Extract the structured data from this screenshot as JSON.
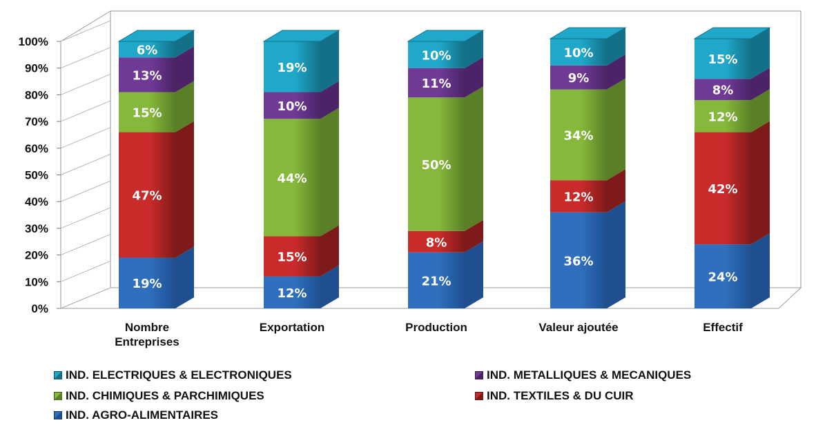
{
  "chart_data": {
    "type": "bar",
    "stacked": true,
    "percent_stacked": true,
    "three_d": true,
    "categories": [
      "Nombre Entreprises",
      "Exportation",
      "Production",
      "Valeur ajoutée",
      "Effectif"
    ],
    "category_lines": [
      [
        "Nombre",
        "Entreprises"
      ],
      [
        "Exportation"
      ],
      [
        "Production"
      ],
      [
        "Valeur ajoutée"
      ],
      [
        "Effectif"
      ]
    ],
    "series": [
      {
        "name": "IND. AGRO-ALIMENTAIRES",
        "values": [
          19,
          12,
          21,
          36,
          24
        ],
        "labels": [
          "19%",
          "12%",
          "21%",
          "36%",
          "24%"
        ],
        "color": "#2f6fbd",
        "side": "#1f4f8f"
      },
      {
        "name": "IND. TEXTILES & DU CUIR",
        "values": [
          47,
          15,
          8,
          12,
          42
        ],
        "labels": [
          "47%",
          "15%",
          "8%",
          "12%",
          "42%"
        ],
        "color": "#c92b2b",
        "side": "#7f1a1a"
      },
      {
        "name": "IND. CHIMIQUES & PARCHIMIQUES",
        "values": [
          15,
          44,
          50,
          34,
          12
        ],
        "labels": [
          "15%",
          "44%",
          "50%",
          "34%",
          "12%"
        ],
        "color": "#86b83b",
        "side": "#5a7f26"
      },
      {
        "name": "IND. METALLIQUES & MECANIQUES",
        "values": [
          13,
          10,
          11,
          9,
          8
        ],
        "labels": [
          "13%",
          "10%",
          "11%",
          "9%",
          "8%"
        ],
        "color": "#6f3a96",
        "side": "#4a2466"
      },
      {
        "name": "IND. ELECTRIQUES & ELECTRONIQUES",
        "values": [
          6,
          19,
          10,
          10,
          15
        ],
        "labels": [
          "6%",
          "19%",
          "10%",
          "10%",
          "15%"
        ],
        "color": "#1fa8c9",
        "side": "#137088"
      }
    ],
    "y_ticks": [
      "0%",
      "10%",
      "20%",
      "30%",
      "40%",
      "50%",
      "60%",
      "70%",
      "80%",
      "90%",
      "100%"
    ],
    "ylim": [
      0,
      100
    ],
    "grid": false,
    "legend_position": "bottom",
    "legend_order": [
      4,
      3,
      2,
      1,
      0
    ]
  }
}
